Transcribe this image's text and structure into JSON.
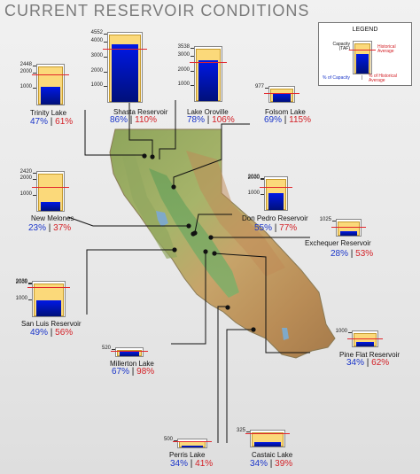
{
  "title": "CURRENT RESERVOIR CONDITIONS",
  "legend": {
    "title": "LEGEND",
    "capacity_label": "Capacity (TAF)",
    "historical_label": "Historical Average",
    "pct_capacity_label": "% of Capacity",
    "pct_historical_label": "% of Historical Average"
  },
  "colors": {
    "current_fill": "#0018e6",
    "capacity_fill": "#fbd97a",
    "historical_line": "#e3262c",
    "pct_capacity_text": "#1a35c9",
    "pct_historical_text": "#d32127"
  },
  "reservoirs": [
    {
      "name": "Trinity Lake",
      "pct_capacity": "47%",
      "pct_historical": "61%",
      "ticks": [
        "2448",
        "2000",
        "1000"
      ],
      "capacity": 2448,
      "current": 1150,
      "historical": 1890
    },
    {
      "name": "Shasta Reservoir",
      "pct_capacity": "86%",
      "pct_historical": "110%",
      "ticks": [
        "4552",
        "4000",
        "3000",
        "2000",
        "1000"
      ],
      "capacity": 4552,
      "current": 3910,
      "historical": 3550
    },
    {
      "name": "Lake Oroville",
      "pct_capacity": "78%",
      "pct_historical": "106%",
      "ticks": [
        "3538",
        "3000",
        "2000",
        "1000"
      ],
      "capacity": 3538,
      "current": 2760,
      "historical": 2600
    },
    {
      "name": "Folsom Lake",
      "pct_capacity": "69%",
      "pct_historical": "115%",
      "ticks": [
        "977"
      ],
      "capacity": 977,
      "current": 675,
      "historical": 590
    },
    {
      "name": "New Melones",
      "pct_capacity": "23%",
      "pct_historical": "37%",
      "ticks": [
        "2420",
        "2000",
        "1000"
      ],
      "capacity": 2420,
      "current": 560,
      "historical": 1510
    },
    {
      "name": "Don Pedro Reservoir",
      "pct_capacity": "55%",
      "pct_historical": "77%",
      "ticks": [
        "2030",
        "2000",
        "1000"
      ],
      "capacity": 2030,
      "current": 1115,
      "historical": 1450
    },
    {
      "name": "Exchequer Reservoir",
      "pct_capacity": "28%",
      "pct_historical": "53%",
      "ticks": [
        "1025"
      ],
      "capacity": 1025,
      "current": 290,
      "historical": 545
    },
    {
      "name": "San Luis Reservoir",
      "pct_capacity": "49%",
      "pct_historical": "56%",
      "ticks": [
        "2039",
        "2000",
        "1000"
      ],
      "capacity": 2039,
      "current": 1000,
      "historical": 1780
    },
    {
      "name": "Pine Flat Reservoir",
      "pct_capacity": "34%",
      "pct_historical": "62%",
      "ticks": [
        "1000"
      ],
      "capacity": 1000,
      "current": 340,
      "historical": 550
    },
    {
      "name": "Millerton Lake",
      "pct_capacity": "67%",
      "pct_historical": "98%",
      "ticks": [
        "520"
      ],
      "capacity": 520,
      "current": 350,
      "historical": 357
    },
    {
      "name": "Perris Lake",
      "pct_capacity": "34%",
      "pct_historical": "41%",
      "ticks": [
        "500"
      ],
      "capacity": 500,
      "current": 170,
      "historical": 410
    },
    {
      "name": "Castaic Lake",
      "pct_capacity": "34%",
      "pct_historical": "39%",
      "ticks": [
        "325"
      ],
      "capacity": 325,
      "current": 110,
      "historical": 280
    }
  ]
}
